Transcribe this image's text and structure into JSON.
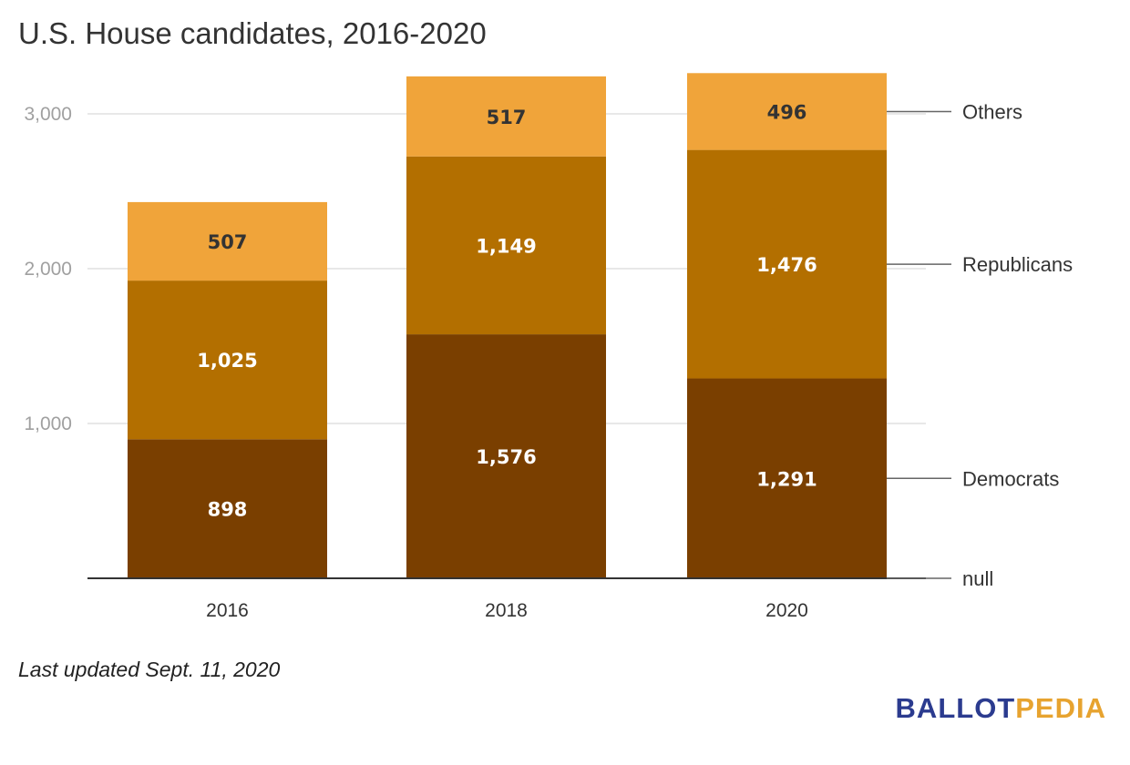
{
  "chart_data": {
    "type": "bar",
    "stacked": true,
    "title": "U.S. House candidates, 2016-2020",
    "categories": [
      "2016",
      "2018",
      "2020"
    ],
    "series": [
      {
        "name": "Democrats",
        "values": [
          898,
          1576,
          1291
        ],
        "color": "#7a3f00",
        "label_color": "#ffffff"
      },
      {
        "name": "Republicans",
        "values": [
          1025,
          1149,
          1476
        ],
        "color": "#b36f00",
        "label_color": "#ffffff"
      },
      {
        "name": "Others",
        "values": [
          507,
          517,
          496
        ],
        "color": "#f0a43a",
        "label_color": "#333333"
      }
    ],
    "extra_legend_entry": "null",
    "yticks": [
      1000,
      2000,
      3000
    ],
    "ytick_labels": [
      "1,000",
      "2,000",
      "3,000"
    ],
    "ylim": [
      0,
      3300
    ],
    "grid": true,
    "legend_position": "right",
    "xlabel": "",
    "ylabel": ""
  },
  "footnote": "Last updated Sept. 11, 2020",
  "logo": {
    "part1": "BALLOT",
    "part2": "PEDIA"
  }
}
